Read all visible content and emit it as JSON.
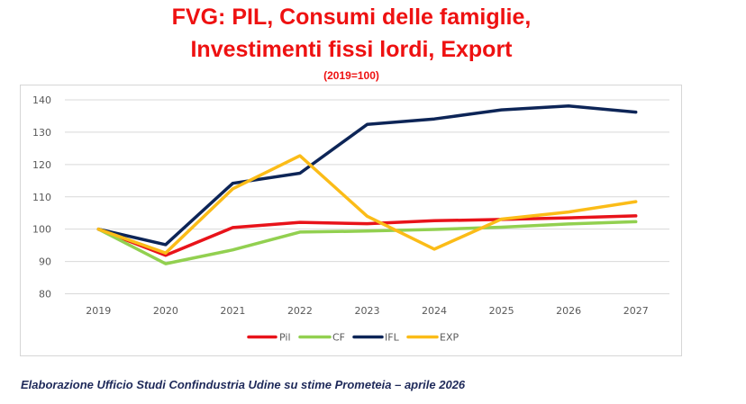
{
  "chart_data": {
    "type": "line",
    "title_line1": "FVG: PIL, Consumi delle famiglie,",
    "title_line2": "Investimenti fissi lordi, Export",
    "subtitle": "(2019=100)",
    "xlabel": "",
    "ylabel": "",
    "categories": [
      "2019",
      "2020",
      "2021",
      "2022",
      "2023",
      "2024",
      "2025",
      "2026",
      "2027"
    ],
    "ylim": [
      80,
      140
    ],
    "yticks": [
      80,
      90,
      100,
      110,
      120,
      130,
      140
    ],
    "grid": true,
    "legend_position": "bottom",
    "series": [
      {
        "name": "Pil",
        "color": "#e8131a",
        "values": [
          100,
          91.9,
          100.5,
          102.1,
          101.7,
          102.6,
          103.0,
          103.5,
          104.1
        ]
      },
      {
        "name": "CF",
        "color": "#92d050",
        "values": [
          100,
          89.3,
          93.6,
          99.1,
          99.4,
          99.9,
          100.6,
          101.6,
          102.3
        ]
      },
      {
        "name": "IFL",
        "color": "#0d2557",
        "values": [
          100,
          95.2,
          114.2,
          117.3,
          132.4,
          134.1,
          136.9,
          138.1,
          136.2
        ]
      },
      {
        "name": "EXP",
        "color": "#fbbc18",
        "values": [
          100,
          92.6,
          112.5,
          122.7,
          104.0,
          93.8,
          103.1,
          105.3,
          108.5
        ]
      }
    ]
  },
  "source_note": "Elaborazione Ufficio Studi Confindustria Udine su stime Prometeia – aprile 2026"
}
